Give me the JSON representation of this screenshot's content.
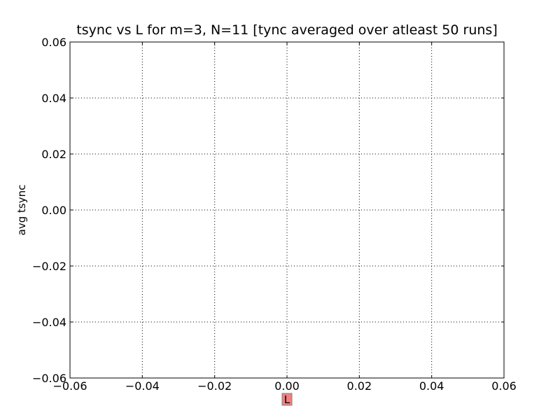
{
  "chart_data": {
    "type": "scatter",
    "title": "tsync vs L for m=3, N=11 [tync averaged over atleast 50 runs]",
    "xlabel": "L",
    "ylabel": "avg tsync",
    "xlim": [
      -0.06,
      0.06
    ],
    "ylim": [
      -0.06,
      0.06
    ],
    "xticks": [
      -0.06,
      -0.04,
      -0.02,
      0.0,
      0.02,
      0.04,
      0.06
    ],
    "yticks": [
      -0.06,
      -0.04,
      -0.02,
      0.0,
      0.02,
      0.04,
      0.06
    ],
    "xtick_labels": [
      "−0.06",
      "−0.04",
      "−0.02",
      "0.00",
      "0.02",
      "0.04",
      "0.06"
    ],
    "ytick_labels": [
      "−0.06",
      "−0.04",
      "−0.02",
      "0.00",
      "0.02",
      "0.04",
      "0.06"
    ],
    "grid": true,
    "series": [],
    "colors": {
      "xlabel_box_fill": "#f08080",
      "xlabel_box_edge": "#808080",
      "grid": "#000000",
      "axes": "#000000"
    }
  }
}
